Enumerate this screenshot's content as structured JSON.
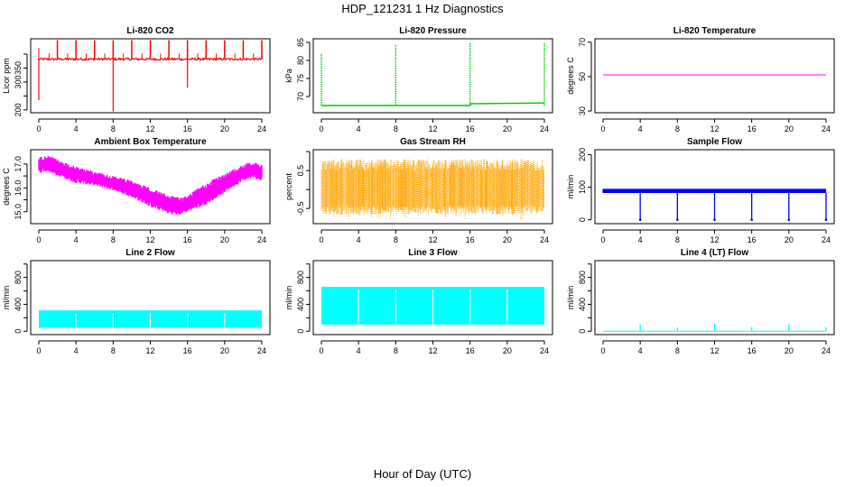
{
  "title": "HDP_121231  1 Hz Diagnostics",
  "xlabel": "Hour of Day (UTC)",
  "colors": {
    "red": "#ff0000",
    "green": "#00cc00",
    "magenta": "#ff00ff",
    "orange": "#ffa500",
    "blue": "#0000ff",
    "cyan": "#00ffff"
  },
  "chart_data": [
    {
      "type": "line",
      "title": "Li-820 CO2",
      "ylabel": "Licor ppm",
      "xlim": [
        0,
        24
      ],
      "ylim": [
        190,
        455
      ],
      "xticks": [
        0,
        4,
        8,
        12,
        16,
        20,
        24
      ],
      "yticks": [
        200,
        250,
        300,
        350,
        400
      ],
      "ytick_labels": [
        "200",
        "",
        "300",
        "350",
        ""
      ],
      "color": "#ff0000",
      "series": [
        {
          "kind": "co2",
          "baseline": 382,
          "spikes_up": [
            2,
            4,
            6,
            8,
            10,
            12,
            14,
            16,
            18,
            20,
            22,
            24
          ],
          "spike_top": 450,
          "dips": [
            8,
            16
          ],
          "dip_values": [
            195,
            280
          ],
          "start_dip": 235
        }
      ]
    },
    {
      "type": "line",
      "title": "Li-820 Pressure",
      "ylabel": "kPa",
      "xlim": [
        0,
        24
      ],
      "ylim": [
        65.5,
        86
      ],
      "xticks": [
        0,
        4,
        8,
        12,
        16,
        20,
        24
      ],
      "yticks": [
        70,
        75,
        80,
        85
      ],
      "ytick_labels": [
        "70",
        "75",
        "80",
        "85"
      ],
      "color": "#00cc00",
      "series": [
        {
          "kind": "pressure",
          "baseline": [
            [
              0,
              67.5
            ],
            [
              16,
              67.5
            ],
            [
              16.1,
              68
            ],
            [
              24,
              68.2
            ]
          ],
          "spikes": [
            [
              0,
              82
            ],
            [
              8,
              84.5
            ],
            [
              16,
              85
            ],
            [
              24,
              85
            ]
          ]
        }
      ]
    },
    {
      "type": "line",
      "title": "Li-820 Temperature",
      "ylabel": "degrees C",
      "xlim": [
        0,
        24
      ],
      "ylim": [
        29,
        72
      ],
      "xticks": [
        0,
        4,
        8,
        12,
        16,
        20,
        24
      ],
      "yticks": [
        30,
        50,
        70
      ],
      "ytick_labels": [
        "30",
        "50",
        "70"
      ],
      "color": "#ff00ff",
      "series": [
        {
          "kind": "flat",
          "x": [
            0,
            24
          ],
          "y": [
            51,
            51
          ]
        }
      ]
    },
    {
      "type": "line",
      "title": "Ambient Box Temperature",
      "ylabel": "degrees C",
      "xlim": [
        0,
        24
      ],
      "ylim": [
        14.5,
        17.6
      ],
      "xticks": [
        0,
        4,
        8,
        12,
        16,
        20,
        24
      ],
      "yticks": [
        15.0,
        15.5,
        16.0,
        16.5,
        17.0
      ],
      "ytick_labels": [
        "15.0",
        "",
        "16.0",
        "",
        "17.0"
      ],
      "color": "#ff00ff",
      "series": [
        {
          "kind": "band",
          "x": [
            0,
            1,
            2,
            4,
            6,
            8,
            10,
            12,
            14,
            15,
            16,
            18,
            20,
            22,
            23,
            24
          ],
          "lo": [
            16.6,
            16.7,
            16.5,
            16.2,
            16.1,
            15.9,
            15.6,
            15.2,
            14.9,
            14.85,
            15.0,
            15.3,
            15.8,
            16.3,
            16.4,
            16.3
          ],
          "hi": [
            17.3,
            17.35,
            17.2,
            16.9,
            16.7,
            16.5,
            16.3,
            16.0,
            15.7,
            15.6,
            15.7,
            16.2,
            16.6,
            17.0,
            17.1,
            17.0
          ]
        }
      ]
    },
    {
      "type": "line",
      "title": "Gas Stream RH",
      "ylabel": "percent",
      "xlim": [
        0,
        24
      ],
      "ylim": [
        -0.9,
        1.05
      ],
      "xticks": [
        0,
        4,
        8,
        12,
        16,
        20,
        24
      ],
      "yticks": [
        -0.5,
        0.0,
        0.5,
        1.0
      ],
      "ytick_labels": [
        "-0.5",
        "",
        "0.5",
        ""
      ],
      "color": "#ffa500",
      "series": [
        {
          "kind": "noise",
          "x": [
            0,
            24
          ],
          "lo": -0.65,
          "hi": 0.8,
          "extreme_lo": -0.8,
          "extreme_hi": 0.95
        }
      ]
    },
    {
      "type": "line",
      "title": "Sample Flow",
      "ylabel": "ml/min",
      "xlim": [
        0,
        24
      ],
      "ylim": [
        -12,
        215
      ],
      "xticks": [
        0,
        4,
        8,
        12,
        16,
        20,
        24
      ],
      "yticks": [
        0,
        100,
        200
      ],
      "ytick_labels": [
        "0",
        "100",
        "200"
      ],
      "color": "#0000ff",
      "series": [
        {
          "kind": "flow",
          "lo": 82,
          "hi": 95,
          "dips": [
            4,
            8,
            12,
            16,
            20,
            24
          ],
          "dip_value": 0
        }
      ]
    },
    {
      "type": "area",
      "title": "Line 2 Flow",
      "ylabel": "ml/min",
      "xlim": [
        0,
        24
      ],
      "ylim": [
        -50,
        1050
      ],
      "xticks": [
        0,
        4,
        8,
        12,
        16,
        20,
        24
      ],
      "yticks": [
        0,
        200,
        400,
        600,
        800,
        1000
      ],
      "ytick_labels": [
        "0",
        "",
        "400",
        "",
        "800",
        ""
      ],
      "color": "#00ffff",
      "series": [
        {
          "kind": "fill",
          "lo": 50,
          "hi": 310,
          "gaps": [
            4,
            8,
            12,
            16,
            20
          ]
        }
      ]
    },
    {
      "type": "area",
      "title": "Line 3 Flow",
      "ylabel": "ml/min",
      "xlim": [
        0,
        24
      ],
      "ylim": [
        -50,
        1050
      ],
      "xticks": [
        0,
        4,
        8,
        12,
        16,
        20,
        24
      ],
      "yticks": [
        0,
        200,
        400,
        600,
        800,
        1000
      ],
      "ytick_labels": [
        "0",
        "",
        "400",
        "",
        "800",
        ""
      ],
      "color": "#00ffff",
      "series": [
        {
          "kind": "fill",
          "lo": 100,
          "hi": 660,
          "gaps": [
            4,
            8,
            12,
            16,
            20
          ]
        }
      ]
    },
    {
      "type": "line",
      "title": "Line 4 (LT) Flow",
      "ylabel": "ml/min",
      "xlim": [
        0,
        24
      ],
      "ylim": [
        -50,
        1050
      ],
      "xticks": [
        0,
        4,
        8,
        12,
        16,
        20,
        24
      ],
      "yticks": [
        0,
        200,
        400,
        600,
        800,
        1000
      ],
      "ytick_labels": [
        "0",
        "",
        "400",
        "",
        "800",
        ""
      ],
      "color": "#00ffff",
      "series": [
        {
          "kind": "spikes",
          "baseline": 0,
          "spikes": [
            [
              4,
              100
            ],
            [
              8,
              55
            ],
            [
              12,
              110
            ],
            [
              16,
              60
            ],
            [
              20,
              105
            ],
            [
              24,
              60
            ]
          ]
        }
      ]
    }
  ]
}
